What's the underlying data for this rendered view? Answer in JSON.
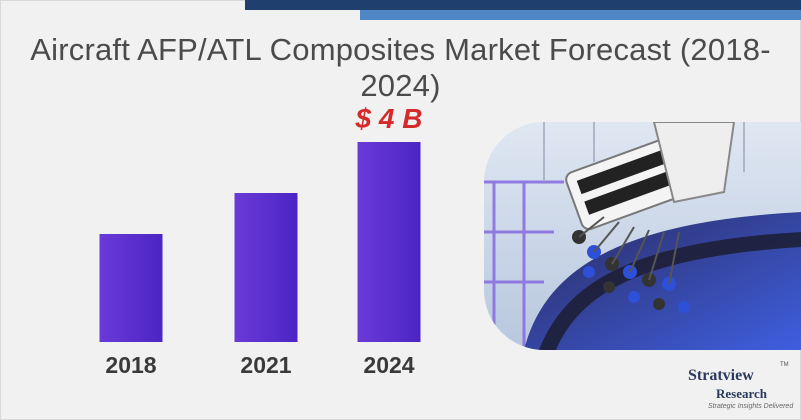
{
  "title": "Aircraft AFP/ATL Composites Market Forecast (2018-2024)",
  "chart_data": {
    "type": "bar",
    "categories": [
      "2018",
      "2021",
      "2024"
    ],
    "values": [
      2.16,
      2.98,
      4.0
    ],
    "ylim": [
      0,
      4.6
    ],
    "annotations": [
      {
        "category": "2024",
        "text": "$ 4 B"
      }
    ],
    "bar_color": "#5b2fd3",
    "grid": false,
    "title": "Aircraft AFP/ATL Composites Market Forecast (2018-2024)"
  },
  "logo": {
    "name": "Stratview",
    "tm": "TM",
    "sub": "Research",
    "tagline": "Strategic Insights Delivered"
  },
  "colors": {
    "stripe_dark": "#1f3f6e",
    "stripe_light": "#4f86c6",
    "callout": "#d42a2a"
  }
}
